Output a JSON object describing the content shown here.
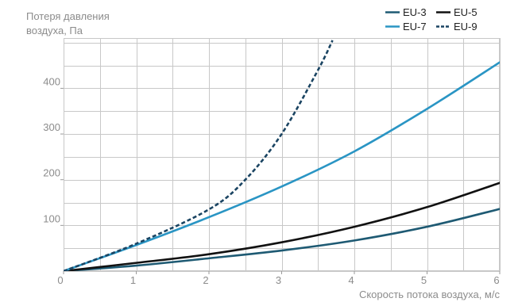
{
  "chart_data": {
    "type": "line",
    "ylabel_lines": [
      "Потеря давления",
      "воздуха, Па"
    ],
    "xlabel": "Скорость потока воздуха, м/с",
    "xlim": [
      0,
      6
    ],
    "ylim": [
      0,
      510
    ],
    "x_ticks": [
      0,
      1,
      2,
      3,
      4,
      5,
      6
    ],
    "x_tick_labels": [
      "0",
      "1",
      "2",
      "3",
      "4",
      "5",
      "6"
    ],
    "y_ticks": [
      100,
      200,
      300,
      400
    ],
    "y_tick_labels": [
      "100",
      "200",
      "300",
      "400"
    ],
    "grid": true,
    "legend_position": "top-right",
    "series": [
      {
        "name": "EU-3",
        "color": "#1e5a73",
        "dashed": false,
        "x": [
          0,
          1,
          2,
          3,
          4,
          5,
          6
        ],
        "y": [
          0,
          12,
          28,
          45,
          67,
          97,
          136
        ]
      },
      {
        "name": "EU-5",
        "color": "#111111",
        "dashed": false,
        "x": [
          0,
          1,
          2,
          3,
          4,
          5,
          6
        ],
        "y": [
          0,
          18,
          37,
          63,
          97,
          140,
          193
        ]
      },
      {
        "name": "EU-7",
        "color": "#2a95c4",
        "dashed": false,
        "x": [
          0,
          1,
          2,
          3,
          4,
          5,
          6
        ],
        "y": [
          0,
          57,
          118,
          185,
          262,
          355,
          457
        ]
      },
      {
        "name": "EU-9",
        "color": "#1a4462",
        "dashed": true,
        "x": [
          0,
          1,
          2,
          2.5,
          3,
          3.5,
          3.7
        ],
        "y": [
          0,
          60,
          135,
          200,
          300,
          440,
          505
        ]
      }
    ]
  }
}
